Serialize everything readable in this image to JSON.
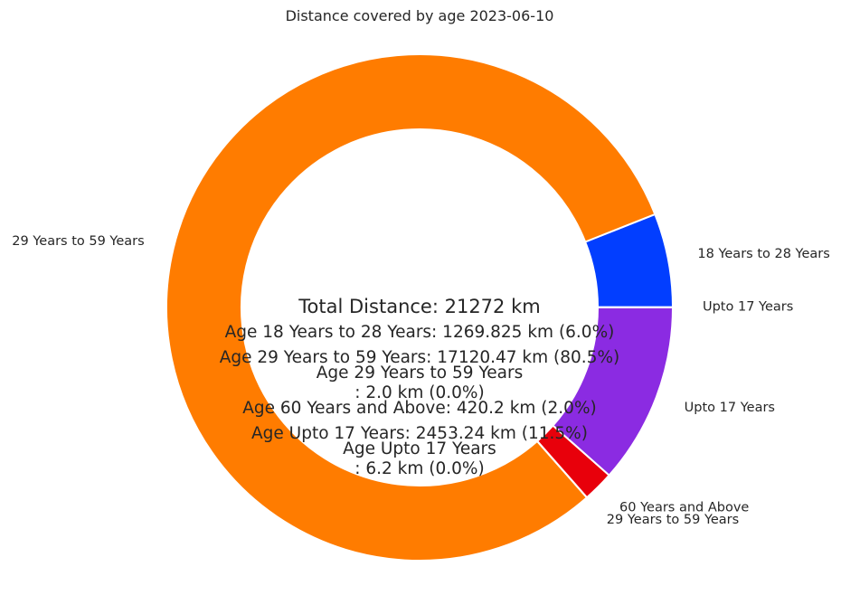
{
  "chart_data": {
    "type": "pie",
    "variant": "donut",
    "title": "Distance covered by age 2023-06-10",
    "slices": [
      {
        "label": "Upto 17 Years",
        "value": 6.2,
        "color": "#023eff"
      },
      {
        "label": "18 Years to 28 Years",
        "value": 1269.825,
        "color": "#023eff"
      },
      {
        "label": "29 Years to 59 Years",
        "value": 17120.47,
        "color": "#ff7c00"
      },
      {
        "label": "29 Years to 59 Years",
        "value": 2.0,
        "color": "#ff7c00"
      },
      {
        "label": "60 Years and Above",
        "value": 420.2,
        "color": "#e8000b"
      },
      {
        "label": "Upto 17 Years",
        "value": 2453.24,
        "color": "#8b2be2"
      }
    ],
    "center_texts": [
      "Total Distance: 21272 km",
      "Age 18 Years to 28 Years: 1269.825 km (6.0%)",
      "Age 29 Years to 59 Years: 17120.47 km (80.5%)",
      "Age 29 Years to 59 Years\n: 2.0 km (0.0%)",
      "Age 60 Years and Above: 420.2 km (2.0%)",
      "Age Upto 17 Years: 2453.24 km (11.5%)",
      "Age Upto 17 Years\n: 6.2 km (0.0%)"
    ]
  }
}
